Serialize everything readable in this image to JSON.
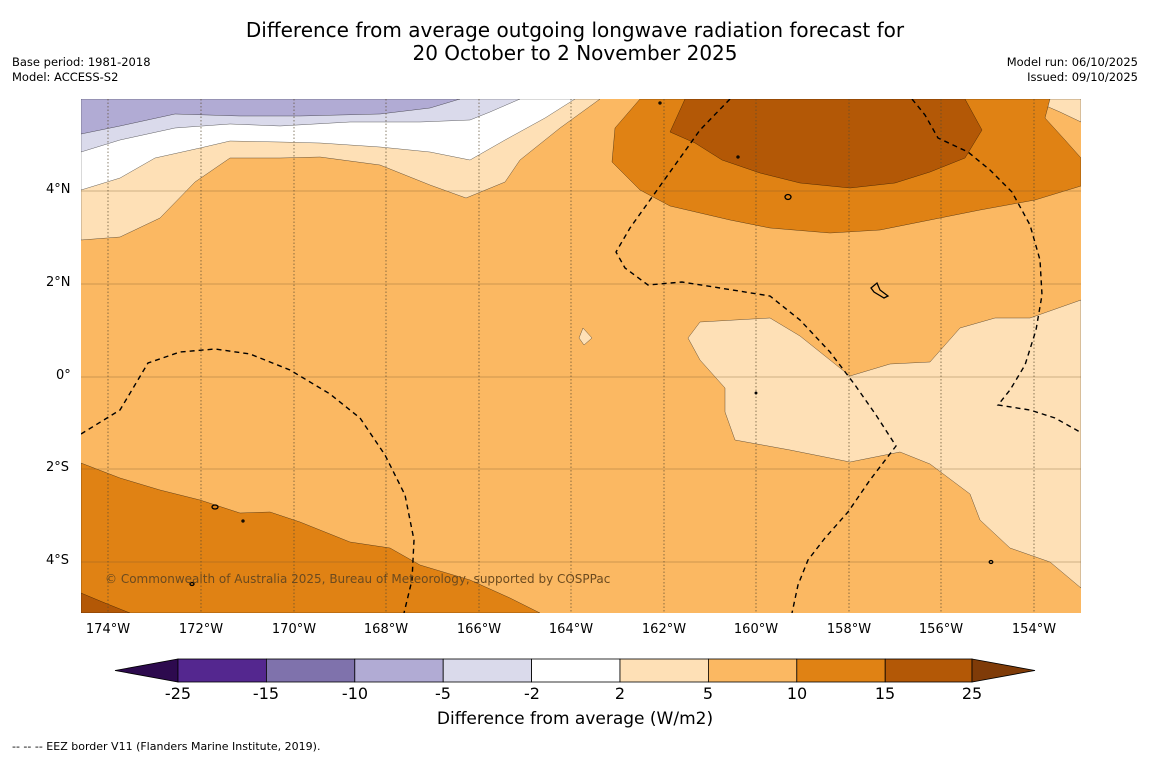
{
  "title": {
    "line1": "Difference from average outgoing longwave radiation forecast for",
    "line2": "20 October to 2 November 2025"
  },
  "meta_left": {
    "base_period": "Base period: 1981-2018",
    "model": "Model: ACCESS-S2"
  },
  "meta_right": {
    "model_run": "Model run: 06/10/2025",
    "issued": "Issued: 09/10/2025"
  },
  "map": {
    "lat_labels": [
      "4°N",
      "2°N",
      "0°",
      "2°S",
      "4°S"
    ],
    "lon_labels": [
      "174°W",
      "172°W",
      "170°W",
      "168°W",
      "166°W",
      "164°W",
      "162°W",
      "160°W",
      "158°W",
      "156°W",
      "154°W"
    ],
    "copyright": "© Commonwealth of Australia 2025, Bureau of Meteorology, supported by COSPPac"
  },
  "colorbar": {
    "ticks": [
      "-25",
      "-15",
      "-10",
      "-5",
      "-2",
      "2",
      "5",
      "10",
      "15",
      "25"
    ],
    "colors": [
      "#2d0a4e",
      "#54278f",
      "#7f72ac",
      "#b1abd4",
      "#dadaeb",
      "#ffffff",
      "#fee0b6",
      "#fbb862",
      "#e08214",
      "#b35806",
      "#7f3b08"
    ],
    "title": "Difference from average (W/m2)"
  },
  "footnote": "--  --  -- EEZ border V11 (Flanders Marine Institute, 2019)."
}
